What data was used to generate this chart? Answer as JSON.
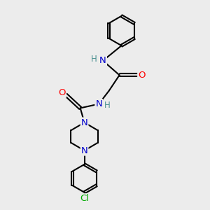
{
  "background_color": "#ececec",
  "atom_colors": {
    "N": "#0000cc",
    "O": "#ff0000",
    "Cl": "#00aa00",
    "C": "#000000",
    "H": "#4a9090"
  },
  "bond_color": "#000000",
  "bond_width": 1.5,
  "figsize": [
    3.0,
    3.0
  ],
  "dpi": 100
}
